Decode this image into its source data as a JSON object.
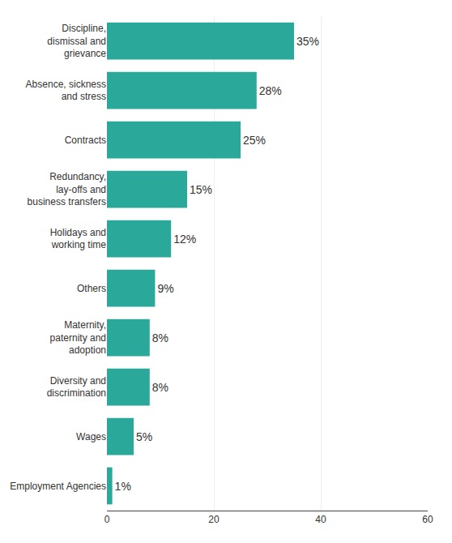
{
  "chart_data": {
    "type": "bar",
    "orientation": "horizontal",
    "categories": [
      "Employment Agencies",
      "Wages",
      "Diversity and\ndiscrimination",
      "Maternity,\npaternity and\nadoption",
      "Others",
      "Holidays and\nworking time",
      "Redundancy,\nlay-offs and\nbusiness transfers",
      "Contracts",
      "Absence, sickness\nand stress",
      "Discipline,\ndismissal and\ngrievance"
    ],
    "values": [
      1,
      5,
      8,
      8,
      9,
      12,
      15,
      25,
      28,
      35
    ],
    "value_labels": [
      "1%",
      "5%",
      "8%",
      "8%",
      "9%",
      "12%",
      "15%",
      "25%",
      "28%",
      "35%"
    ],
    "data_labels": true,
    "color": "#2aA99B",
    "xlim": [
      0,
      60
    ],
    "xticks": [
      0,
      20,
      40,
      60
    ],
    "grid": true
  }
}
